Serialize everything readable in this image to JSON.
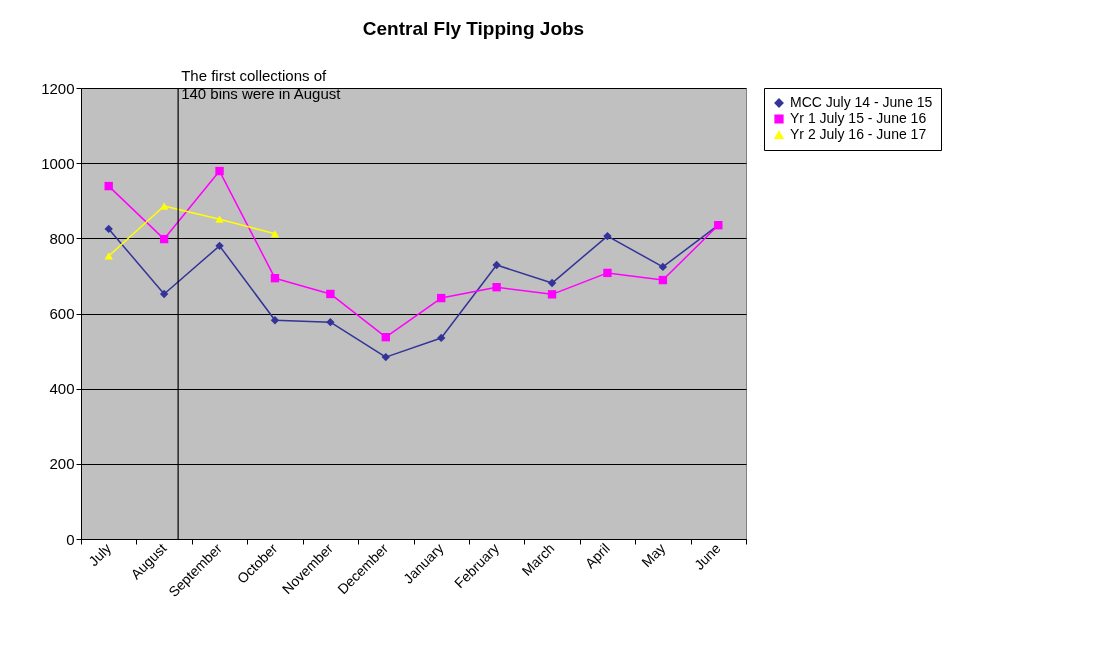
{
  "chart_data": {
    "type": "line",
    "title": "Central Fly Tipping Jobs",
    "categories": [
      "July",
      "August",
      "September",
      "October",
      "November",
      "December",
      "January",
      "February",
      "March",
      "April",
      "May",
      "June"
    ],
    "series": [
      {
        "name": "MCC July 14 - June 15",
        "color": "#333399",
        "marker": "diamond",
        "values": [
          825,
          652,
          780,
          582,
          577,
          484,
          535,
          729,
          681,
          806,
          724,
          835
        ]
      },
      {
        "name": "Yr 1 July 15 - June 16",
        "color": "#ff00ff",
        "marker": "square",
        "values": [
          939,
          798,
          979,
          694,
          652,
          537,
          641,
          670,
          651,
          708,
          689,
          835
        ]
      },
      {
        "name": "Yr 2 July 16 - June 17",
        "color": "#ffff00",
        "marker": "triangle",
        "values": [
          753,
          886,
          851,
          812,
          null,
          null,
          null,
          null,
          null,
          null,
          null,
          null
        ]
      }
    ],
    "ylim": [
      0,
      1200
    ],
    "yticks": [
      0,
      200,
      400,
      600,
      800,
      1000,
      1200
    ],
    "grid": "y",
    "legend": "right",
    "ref_lines": [
      {
        "axis": "x",
        "value": "August",
        "label": "The first collections of 140 bins were in August",
        "color": "#000000"
      }
    ]
  }
}
